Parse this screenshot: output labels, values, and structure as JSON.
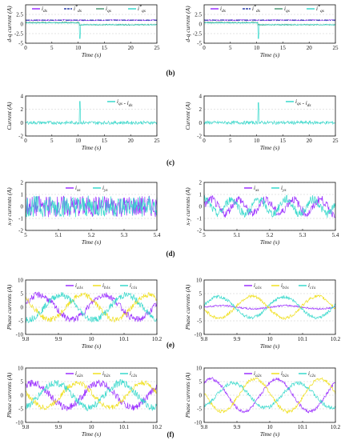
{
  "captions": [
    "(b)",
    "(c)",
    "(d)",
    "(e)",
    "(f)"
  ],
  "colors": {
    "purple": "#9b30ff",
    "cyan": "#38d9cc",
    "green": "#4e9a78",
    "yellow": "#f0e020",
    "indigo": "#2b3fa8",
    "axis": "#111111",
    "grid": "#c8c8c8"
  },
  "chart_data": [
    {
      "id": "b-left",
      "type": "line",
      "xlabel": "Time (s)",
      "ylabel": "d-q current (A)",
      "xlim": [
        0,
        25
      ],
      "ylim": [
        -5,
        5
      ],
      "xticks": [
        0,
        5,
        10,
        15,
        20,
        25
      ],
      "yticks": [
        2.5,
        0,
        -2.5,
        -5
      ],
      "legend": [
        "i_ds",
        "i*_ds",
        "i_qs",
        "i*_qs"
      ],
      "series": [
        {
          "name": "i_ds",
          "color": "purple",
          "kind": "step",
          "level": 1.0,
          "step_x": 10.2,
          "level2": 1.0,
          "noise": 0.15
        },
        {
          "name": "i*_ds",
          "color": "indigo",
          "kind": "dash",
          "level": 1.0,
          "step_x": 10.2,
          "level2": 1.0,
          "noise": 0
        },
        {
          "name": "i_qs",
          "color": "green",
          "kind": "step",
          "level": 0.4,
          "step_x": 10.2,
          "level2": -0.2,
          "noise": 0.15
        },
        {
          "name": "i*_qs",
          "color": "cyan",
          "kind": "step",
          "level": 0.3,
          "step_x": 10.2,
          "level2": -0.2,
          "noise": 0.1,
          "spike_x": 10.3,
          "spike_y": -3.8
        }
      ]
    },
    {
      "id": "b-right",
      "type": "line",
      "xlabel": "Time (s)",
      "ylabel": "d-q current (A)",
      "xlim": [
        0,
        25
      ],
      "ylim": [
        -5,
        5
      ],
      "xticks": [
        0,
        5,
        10,
        15,
        20,
        25
      ],
      "yticks": [
        2.5,
        0,
        -2.5,
        -5
      ],
      "legend": [
        "i_ds",
        "i*_ds",
        "i_qs",
        "i*_qs"
      ],
      "series": [
        {
          "name": "i_ds",
          "color": "purple",
          "kind": "step",
          "level": 1.0,
          "step_x": 10.2,
          "level2": 1.0,
          "noise": 0.15
        },
        {
          "name": "i*_ds",
          "color": "indigo",
          "kind": "dash",
          "level": 1.0,
          "step_x": 10.2,
          "level2": 1.0,
          "noise": 0
        },
        {
          "name": "i_qs",
          "color": "green",
          "kind": "step",
          "level": 0.4,
          "step_x": 10.2,
          "level2": -0.2,
          "noise": 0.15
        },
        {
          "name": "i*_qs",
          "color": "cyan",
          "kind": "step",
          "level": 0.3,
          "step_x": 10.2,
          "level2": -0.2,
          "noise": 0.1,
          "spike_x": 10.3,
          "spike_y": -3.8
        }
      ]
    },
    {
      "id": "c-left",
      "type": "line",
      "xlabel": "Time (s)",
      "ylabel": "Current (A)",
      "xlim": [
        0,
        25
      ],
      "ylim": [
        -2,
        4
      ],
      "xticks": [
        0,
        5,
        10,
        15,
        20,
        25
      ],
      "yticks": [
        4,
        2,
        0,
        -2
      ],
      "legend": [
        "i_qs - i_ds"
      ],
      "series": [
        {
          "name": "i_qs - i_ds",
          "color": "cyan",
          "kind": "step",
          "level": 0,
          "step_x": 10.3,
          "level2": 0,
          "noise": 0.25,
          "spike_x": 10.3,
          "spike_y": 3.2
        }
      ]
    },
    {
      "id": "c-right",
      "type": "line",
      "xlabel": "Time (s)",
      "ylabel": "Current (A)",
      "xlim": [
        0,
        25
      ],
      "ylim": [
        -2,
        4
      ],
      "xticks": [
        0,
        5,
        10,
        15,
        20,
        25
      ],
      "yticks": [
        4,
        2,
        0,
        -2
      ],
      "legend": [
        "i_qs - i_ds"
      ],
      "series": [
        {
          "name": "i_qs - i_ds",
          "color": "cyan",
          "kind": "step",
          "level": 0,
          "step_x": 10.3,
          "level2": 0,
          "noise": 0.25,
          "spike_x": 10.3,
          "spike_y": 3.0
        }
      ]
    },
    {
      "id": "d-left",
      "type": "line",
      "xlabel": "Time (s)",
      "ylabel": "x-y currents (A)",
      "xlim": [
        5,
        5.4
      ],
      "ylim": [
        -2,
        2
      ],
      "xticks": [
        5,
        5.1,
        5.2,
        5.3,
        5.4
      ],
      "yticks": [
        2,
        1,
        0,
        -1,
        -2
      ],
      "legend": [
        "i_xs",
        "i_ys"
      ],
      "series": [
        {
          "name": "i_xs",
          "color": "purple",
          "kind": "noise",
          "amp": 0.9,
          "freq": 0,
          "phase": 0
        },
        {
          "name": "i_ys",
          "color": "cyan",
          "kind": "noise",
          "amp": 0.9,
          "freq": 0,
          "phase": 0
        }
      ]
    },
    {
      "id": "d-right",
      "type": "line",
      "xlabel": "Time (s)",
      "ylabel": "x-y currents (A)",
      "xlim": [
        5,
        5.4
      ],
      "ylim": [
        -2,
        2
      ],
      "xticks": [
        5,
        5.1,
        5.2,
        5.3,
        5.4
      ],
      "yticks": [
        2,
        1,
        0,
        -1,
        -2
      ],
      "legend": [
        "i_xs",
        "i_ys"
      ],
      "series": [
        {
          "name": "i_xs",
          "color": "purple",
          "kind": "sine",
          "amp": 0.6,
          "freq": 12,
          "phase": 0,
          "noise": 0.35
        },
        {
          "name": "i_ys",
          "color": "cyan",
          "kind": "sine",
          "amp": 0.6,
          "freq": 12,
          "phase": 1.57,
          "noise": 0.35
        }
      ]
    },
    {
      "id": "e-left",
      "type": "line",
      "xlabel": "Time (s)",
      "ylabel": "Phase currents (A)",
      "xlim": [
        9.8,
        10.2
      ],
      "ylim": [
        -10,
        10
      ],
      "xticks": [
        9.8,
        9.9,
        10,
        10.1,
        10.2
      ],
      "yticks": [
        10,
        5,
        0,
        -5,
        -10
      ],
      "legend": [
        "i_a1s",
        "i_b1s",
        "i_c1s"
      ],
      "series": [
        {
          "name": "i_a1s",
          "color": "purple",
          "kind": "sine",
          "amp": 4.5,
          "freq": 5,
          "phase": 0.3,
          "noise": 1.2
        },
        {
          "name": "i_b1s",
          "color": "yellow",
          "kind": "sine",
          "amp": 4.5,
          "freq": 5,
          "phase": 2.4,
          "noise": 1.0
        },
        {
          "name": "i_c1s",
          "color": "cyan",
          "kind": "sine",
          "amp": 4.5,
          "freq": 5,
          "phase": 4.5,
          "noise": 1.2
        }
      ]
    },
    {
      "id": "e-right",
      "type": "line",
      "xlabel": "Time (s)",
      "ylabel": "Phase currents (A)",
      "xlim": [
        9.8,
        10.2
      ],
      "ylim": [
        -10,
        10
      ],
      "xticks": [
        9.8,
        9.9,
        10,
        10.1,
        10.2
      ],
      "yticks": [
        10,
        5,
        0,
        -5,
        -10
      ],
      "legend": [
        "i_a1s",
        "i_b1s",
        "i_c1s"
      ],
      "series": [
        {
          "name": "i_a1s",
          "color": "purple",
          "kind": "sine",
          "amp": 0.6,
          "freq": 5,
          "phase": 0,
          "noise": 0.3
        },
        {
          "name": "i_b1s",
          "color": "yellow",
          "kind": "sine",
          "amp": 4.0,
          "freq": 5,
          "phase": 3.3,
          "noise": 0.6
        },
        {
          "name": "i_c1s",
          "color": "cyan",
          "kind": "sine",
          "amp": 3.8,
          "freq": 5,
          "phase": 0.2,
          "noise": 0.6
        }
      ]
    },
    {
      "id": "f-left",
      "type": "line",
      "xlabel": "Time (s)",
      "ylabel": "Phase currents (A)",
      "xlim": [
        9.8,
        10.2
      ],
      "ylim": [
        -10,
        10
      ],
      "xticks": [
        9.8,
        9.9,
        10,
        10.1,
        10.2
      ],
      "yticks": [
        10,
        5,
        0,
        -5,
        -10
      ],
      "legend": [
        "i_a2s",
        "i_b2s",
        "i_c2s"
      ],
      "series": [
        {
          "name": "i_a2s",
          "color": "purple",
          "kind": "sine",
          "amp": 4.5,
          "freq": 5,
          "phase": 0.8,
          "noise": 1.3
        },
        {
          "name": "i_b2s",
          "color": "yellow",
          "kind": "sine",
          "amp": 4.5,
          "freq": 5,
          "phase": 2.9,
          "noise": 1.0
        },
        {
          "name": "i_c2s",
          "color": "cyan",
          "kind": "sine",
          "amp": 4.5,
          "freq": 5,
          "phase": 5.0,
          "noise": 1.3
        }
      ]
    },
    {
      "id": "f-right",
      "type": "line",
      "xlabel": "Time (s)",
      "ylabel": "Phase currents (A)",
      "xlim": [
        9.8,
        10.2
      ],
      "ylim": [
        -10,
        10
      ],
      "xticks": [
        9.8,
        9.9,
        10,
        10.1,
        10.2
      ],
      "yticks": [
        10,
        5,
        0,
        -5,
        -10
      ],
      "legend": [
        "i_a2s",
        "i_b2s",
        "i_c2s"
      ],
      "series": [
        {
          "name": "i_a2s",
          "color": "purple",
          "kind": "sine",
          "amp": 6.0,
          "freq": 5,
          "phase": 0.9,
          "noise": 0.6
        },
        {
          "name": "i_b2s",
          "color": "yellow",
          "kind": "sine",
          "amp": 6.0,
          "freq": 5,
          "phase": 3.0,
          "noise": 0.6
        },
        {
          "name": "i_c2s",
          "color": "cyan",
          "kind": "sine",
          "amp": 4.5,
          "freq": 5,
          "phase": 5.1,
          "noise": 0.7
        }
      ]
    }
  ]
}
